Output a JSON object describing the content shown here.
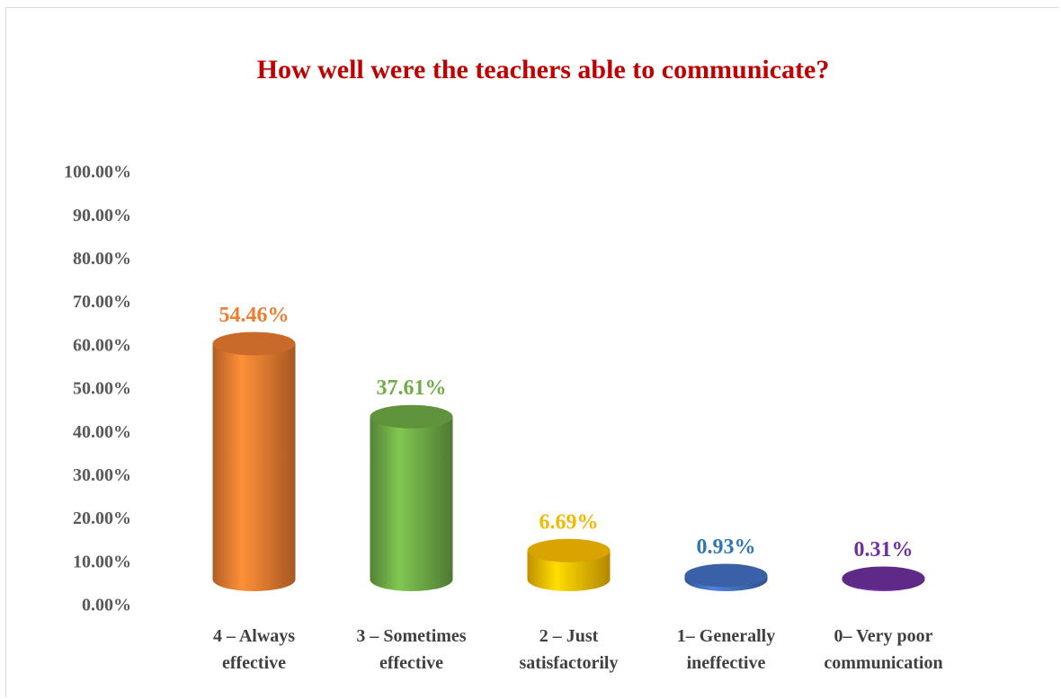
{
  "chart_data": {
    "type": "bar",
    "title": "How well were the teachers able to communicate?",
    "categories": [
      "4 – Always effective",
      "3 – Sometimes effective",
      "2 – Just satisfactorily",
      "1– Generally ineffective",
      "0– Very poor communication"
    ],
    "values": [
      54.46,
      37.61,
      6.69,
      0.93,
      0.31
    ],
    "value_labels": [
      "54.46%",
      "37.61%",
      "6.69%",
      "0.93%",
      "0.31%"
    ],
    "colors": [
      "#ed7d31",
      "#70ad47",
      "#ffc000",
      "#4472c4",
      "#7030a0"
    ],
    "ylim": [
      0,
      100
    ],
    "yticks": [
      {
        "value": 0,
        "label": "0.00%"
      },
      {
        "value": 10,
        "label": "10.00%"
      },
      {
        "value": 20,
        "label": "20.00%"
      },
      {
        "value": 30,
        "label": "30.00%"
      },
      {
        "value": 40,
        "label": "40.00%"
      },
      {
        "value": 50,
        "label": "50.00%"
      },
      {
        "value": 60,
        "label": "60.00%"
      },
      {
        "value": 70,
        "label": "70.00%"
      },
      {
        "value": 80,
        "label": "80.00%"
      },
      {
        "value": 90,
        "label": "90.00%"
      },
      {
        "value": 100,
        "label": "100.00%"
      }
    ],
    "grid": false
  }
}
